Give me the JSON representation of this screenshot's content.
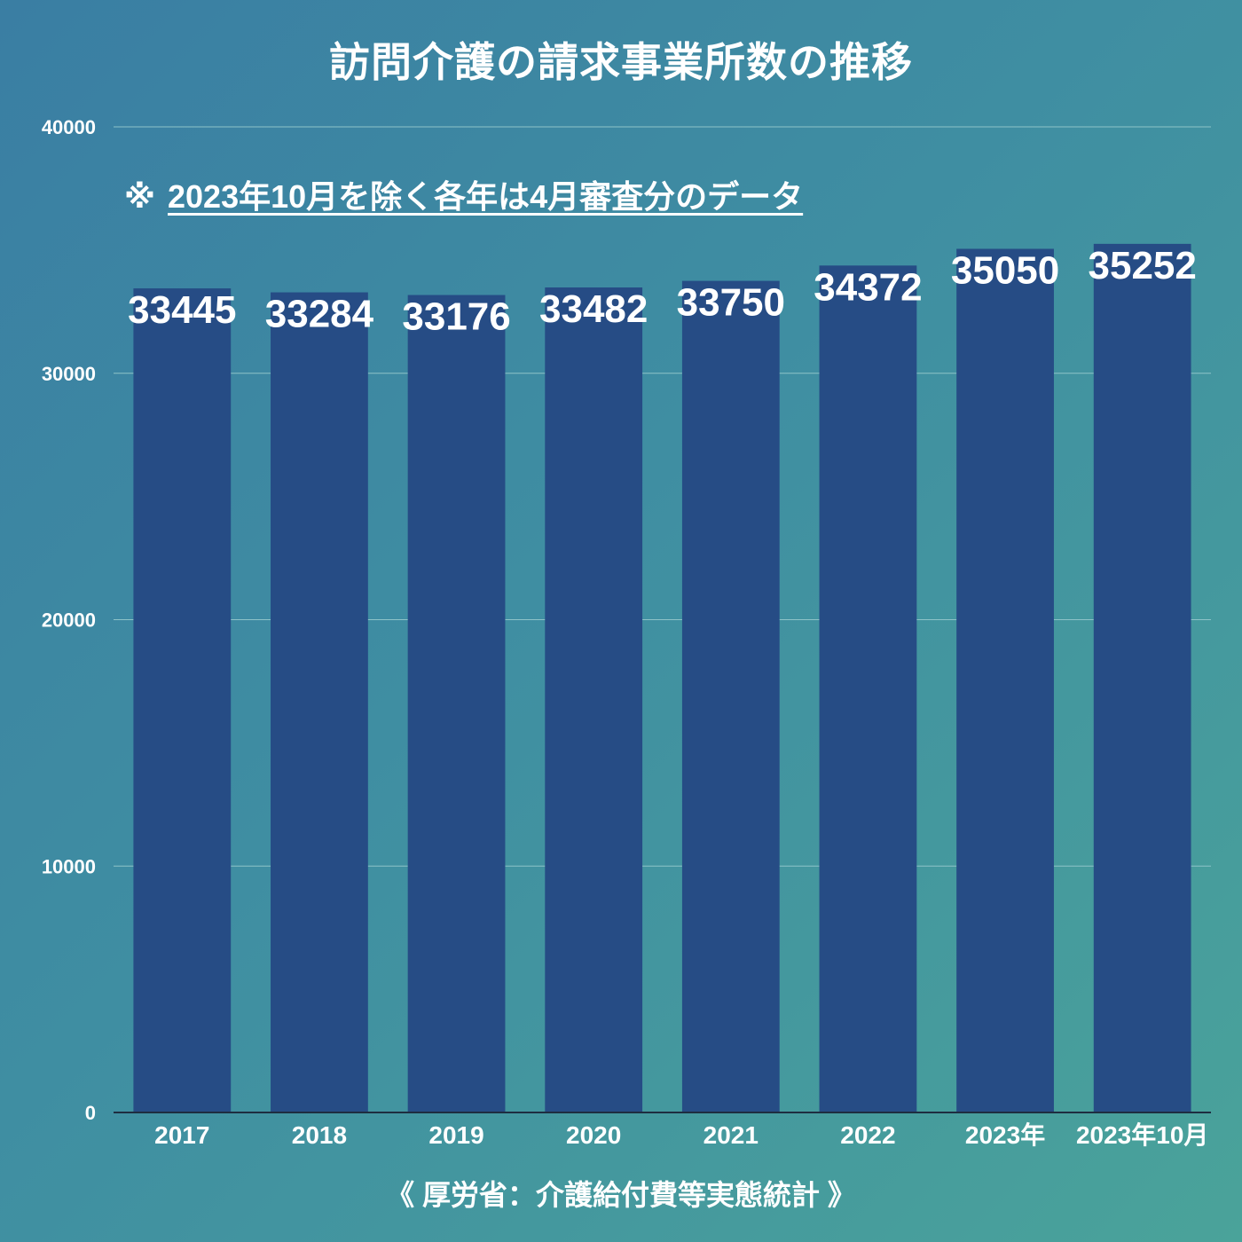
{
  "chart_data": {
    "type": "bar",
    "title": "訪問介護の請求事業所数の推移",
    "note_mark": "※",
    "note": "2023年10月を除く各年は4月審査分のデータ",
    "source": "《 厚労省：介護給付費等実態統計 》",
    "categories": [
      "2017",
      "2018",
      "2019",
      "2020",
      "2021",
      "2022",
      "2023年",
      "2023年10月"
    ],
    "values": [
      33445,
      33284,
      33176,
      33482,
      33750,
      34372,
      35050,
      35252
    ],
    "data_labels": [
      "33445",
      "33284",
      "33176",
      "33482",
      "33750",
      "34372",
      "35050",
      "35252"
    ],
    "yticks": [
      "0",
      "10000",
      "20000",
      "30000",
      "40000"
    ],
    "ylim": [
      0,
      40000
    ],
    "xlabel": "",
    "ylabel": "",
    "grid": true,
    "colors": {
      "bar": "#264c85",
      "grid": "#8ec3c8",
      "axis": "#1e2d40",
      "text": "#ffffff"
    }
  }
}
